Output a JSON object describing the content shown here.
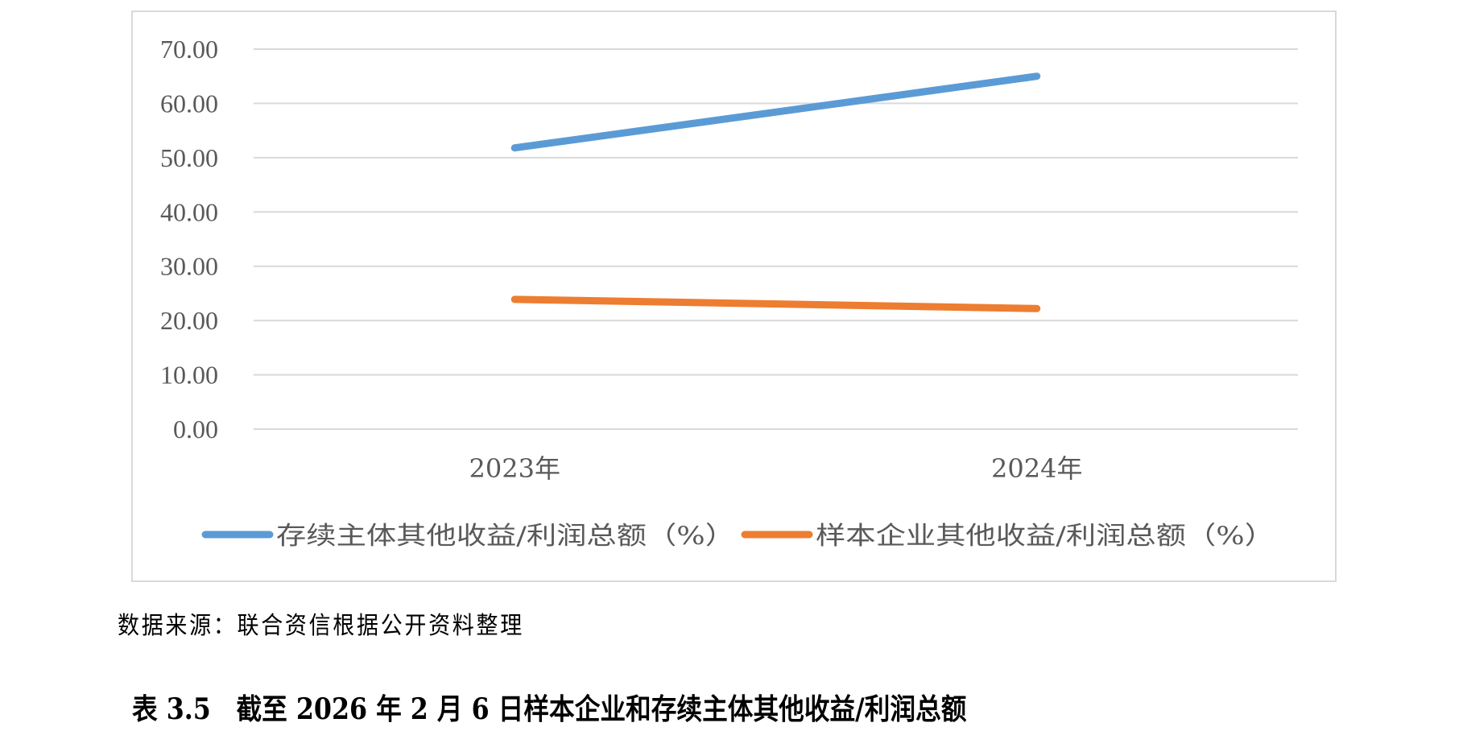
{
  "chart_data": {
    "type": "line",
    "categories": [
      "2023年",
      "2024年"
    ],
    "series": [
      {
        "name": "存续主体其他收益/利润总额（%）",
        "values": [
          51.8,
          65.0
        ],
        "color": "#5B9BD5"
      },
      {
        "name": "样本企业其他收益/利润总额（%）",
        "values": [
          23.9,
          22.2
        ],
        "color": "#ED7D31"
      }
    ],
    "ylim": [
      0,
      70
    ],
    "yticks": [
      "0.00",
      "10.00",
      "20.00",
      "30.00",
      "40.00",
      "50.00",
      "60.00",
      "70.00"
    ],
    "grid": true,
    "legend": "bottom"
  },
  "source": "数据来源：联合资信根据公开资料整理",
  "caption": "表 3.5　截至 2026 年 2 月 6 日样本企业和存续主体其他收益/利润总额"
}
